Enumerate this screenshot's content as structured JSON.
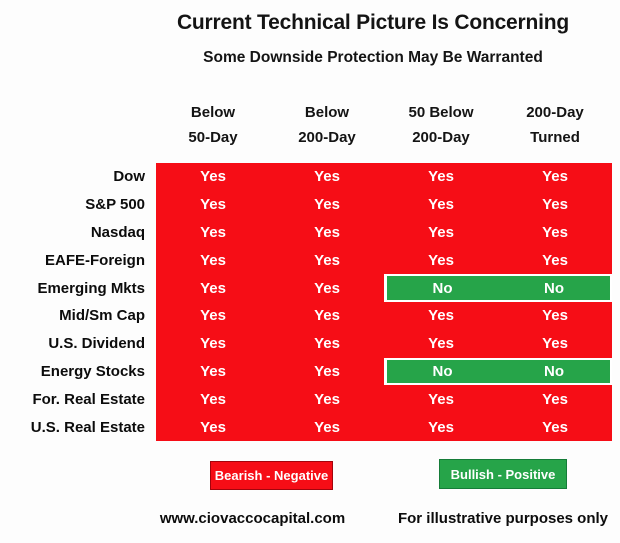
{
  "page": {
    "title": "Current Technical Picture Is Concerning",
    "subtitle": "Some Downside Protection May Be Warranted"
  },
  "colors": {
    "bearish_red": "#f60d16",
    "bullish_green": "#26a449",
    "cell_text": "#ffffff",
    "heading_text": "#141414"
  },
  "chart_data": {
    "type": "table",
    "title": "Current Technical Picture Is Concerning",
    "subtitle": "Some Downside Protection May Be Warranted",
    "columns": [
      "Below 50-Day",
      "Below 200-Day",
      "50 Below 200-Day",
      "200-Day Turned"
    ],
    "rows": [
      {
        "label": "Dow",
        "values": [
          "Yes",
          "Yes",
          "Yes",
          "Yes"
        ]
      },
      {
        "label": "S&P 500",
        "values": [
          "Yes",
          "Yes",
          "Yes",
          "Yes"
        ]
      },
      {
        "label": "Nasdaq",
        "values": [
          "Yes",
          "Yes",
          "Yes",
          "Yes"
        ]
      },
      {
        "label": "EAFE-Foreign",
        "values": [
          "Yes",
          "Yes",
          "Yes",
          "Yes"
        ]
      },
      {
        "label": "Emerging Mkts",
        "values": [
          "Yes",
          "Yes",
          "No",
          "No"
        ]
      },
      {
        "label": "Mid/Sm Cap",
        "values": [
          "Yes",
          "Yes",
          "Yes",
          "Yes"
        ]
      },
      {
        "label": "U.S. Dividend",
        "values": [
          "Yes",
          "Yes",
          "Yes",
          "Yes"
        ]
      },
      {
        "label": "Energy Stocks",
        "values": [
          "Yes",
          "Yes",
          "No",
          "No"
        ]
      },
      {
        "label": "For. Real Estate",
        "values": [
          "Yes",
          "Yes",
          "Yes",
          "Yes"
        ]
      },
      {
        "label": "U.S. Real Estate",
        "values": [
          "Yes",
          "Yes",
          "Yes",
          "Yes"
        ]
      }
    ],
    "legend": [
      {
        "label": "Bearish - Negative",
        "color": "#f60d16"
      },
      {
        "label": "Bullish - Positive",
        "color": "#26a449"
      }
    ]
  },
  "table": {
    "column_headers": [
      {
        "line1": "Below",
        "line2": "50-Day"
      },
      {
        "line1": "Below",
        "line2": "200-Day"
      },
      {
        "line1": "50 Below",
        "line2": "200-Day"
      },
      {
        "line1": "200-Day",
        "line2": "Turned"
      }
    ]
  },
  "legend": {
    "bearish_label": "Bearish - Negative",
    "bullish_label": "Bullish - Positive"
  },
  "footer": {
    "website": "www.ciovaccocapital.com",
    "disclaimer": "For illustrative purposes only"
  }
}
